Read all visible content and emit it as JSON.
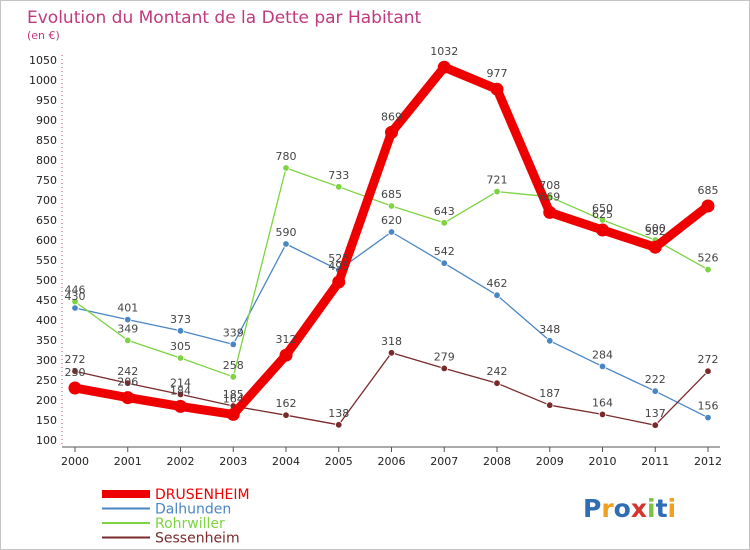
{
  "chart_data": {
    "type": "line",
    "title": "Evolution du Montant de la Dette par Habitant",
    "subtitle": "(en €)",
    "xlabel": "",
    "ylabel": "",
    "categories": [
      "2000",
      "2001",
      "2002",
      "2003",
      "2004",
      "2005",
      "2006",
      "2007",
      "2008",
      "2009",
      "2010",
      "2011",
      "2012"
    ],
    "ylim": [
      100,
      1050
    ],
    "yticks": [
      100,
      150,
      200,
      250,
      300,
      350,
      400,
      450,
      500,
      550,
      600,
      650,
      700,
      750,
      800,
      850,
      900,
      950,
      1000,
      1050
    ],
    "grid": false,
    "legend_placement": "bottom-left",
    "series": [
      {
        "name": "DRUSENHEIM",
        "color": "#ee0000",
        "values": [
          230,
          206,
          184,
          164,
          312,
          495,
          869,
          1032,
          977,
          669,
          625,
          582,
          685
        ]
      },
      {
        "name": "Dalhunden",
        "color": "#4a86c5",
        "values": [
          430,
          401,
          373,
          339,
          590,
          525,
          620,
          542,
          462,
          348,
          284,
          222,
          156
        ]
      },
      {
        "name": "Rohrwiller",
        "color": "#7dd341",
        "values": [
          446,
          349,
          305,
          258,
          780,
          733,
          685,
          643,
          721,
          708,
          650,
          600,
          526
        ]
      },
      {
        "name": "Sessenheim",
        "color": "#7a2a2a",
        "values": [
          272,
          242,
          214,
          185,
          162,
          138,
          318,
          279,
          242,
          187,
          164,
          137,
          272
        ]
      }
    ]
  },
  "branding": {
    "logo_text": "Proxiti"
  }
}
